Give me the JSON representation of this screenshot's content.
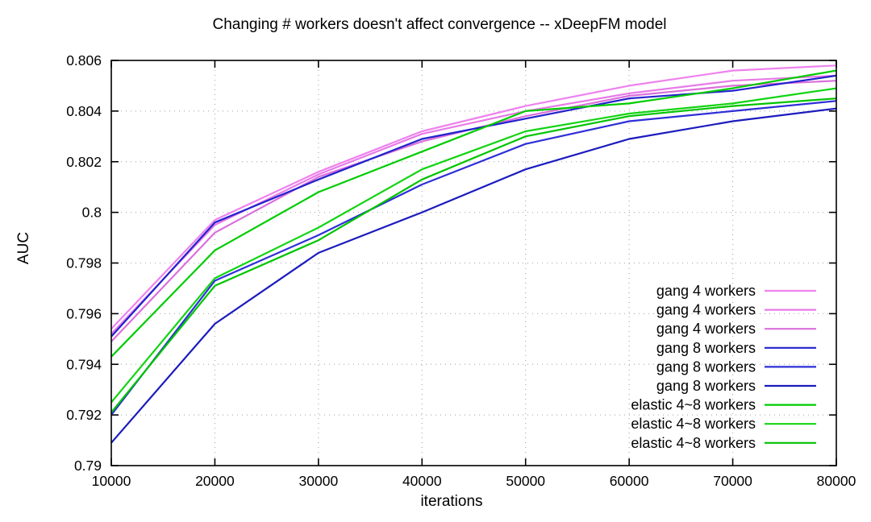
{
  "chart_data": {
    "type": "line",
    "title": "Changing # workers doesn't affect convergence -- xDeepFM model",
    "xlabel": "iterations",
    "ylabel": "AUC",
    "xlim": [
      10000,
      80000
    ],
    "ylim": [
      0.79,
      0.806
    ],
    "grid": true,
    "legend_position": "bottom-right",
    "xticks": [
      {
        "value": 10000,
        "label": "10000"
      },
      {
        "value": 20000,
        "label": "20000"
      },
      {
        "value": 30000,
        "label": "30000"
      },
      {
        "value": 40000,
        "label": "40000"
      },
      {
        "value": 50000,
        "label": "50000"
      },
      {
        "value": 60000,
        "label": "60000"
      },
      {
        "value": 70000,
        "label": "70000"
      },
      {
        "value": 80000,
        "label": "80000"
      }
    ],
    "yticks": [
      {
        "value": 0.79,
        "label": "0.79"
      },
      {
        "value": 0.792,
        "label": "0.792"
      },
      {
        "value": 0.794,
        "label": "0.794"
      },
      {
        "value": 0.796,
        "label": "0.796"
      },
      {
        "value": 0.798,
        "label": "0.798"
      },
      {
        "value": 0.8,
        "label": "0.8"
      },
      {
        "value": 0.802,
        "label": "0.802"
      },
      {
        "value": 0.804,
        "label": "0.804"
      },
      {
        "value": 0.806,
        "label": "0.806"
      }
    ],
    "x": [
      10000,
      20000,
      30000,
      40000,
      50000,
      60000,
      70000,
      80000
    ],
    "series": [
      {
        "name": "gang 4 workers",
        "color": "#ee82ee",
        "values": [
          0.7954,
          0.7997,
          0.8016,
          0.8032,
          0.8042,
          0.805,
          0.8056,
          0.8058
        ]
      },
      {
        "name": "gang 4 workers",
        "color": "#e87ae8",
        "values": [
          0.7952,
          0.7995,
          0.8015,
          0.8031,
          0.804,
          0.8047,
          0.8052,
          0.8054
        ]
      },
      {
        "name": "gang 4 workers",
        "color": "#db6fdb",
        "values": [
          0.7949,
          0.7992,
          0.8014,
          0.8028,
          0.8038,
          0.8046,
          0.805,
          0.8052
        ]
      },
      {
        "name": "gang 8 workers",
        "color": "#2222cc",
        "values": [
          0.7951,
          0.7996,
          0.8013,
          0.8029,
          0.8037,
          0.8045,
          0.8048,
          0.8054
        ]
      },
      {
        "name": "gang 8 workers",
        "color": "#2e2ed8",
        "values": [
          0.792,
          0.7973,
          0.7991,
          0.8011,
          0.8027,
          0.8036,
          0.804,
          0.8044
        ]
      },
      {
        "name": "gang 8 workers",
        "color": "#1b1bbe",
        "values": [
          0.7909,
          0.7956,
          0.7984,
          0.8,
          0.8017,
          0.8029,
          0.8036,
          0.8041
        ]
      },
      {
        "name": "elastic 4~8 workers",
        "color": "#00cc00",
        "values": [
          0.7943,
          0.7985,
          0.8008,
          0.8024,
          0.804,
          0.8043,
          0.8049,
          0.8056
        ]
      },
      {
        "name": "elastic 4~8 workers",
        "color": "#12d412",
        "values": [
          0.7925,
          0.7974,
          0.7994,
          0.8017,
          0.8032,
          0.8039,
          0.8043,
          0.8049
        ]
      },
      {
        "name": "elastic 4~8 workers",
        "color": "#00c400",
        "values": [
          0.7921,
          0.7971,
          0.7989,
          0.8013,
          0.803,
          0.8038,
          0.8042,
          0.8045
        ]
      }
    ],
    "axis_color": "#000000",
    "grid_color": "#9e9e9e"
  }
}
